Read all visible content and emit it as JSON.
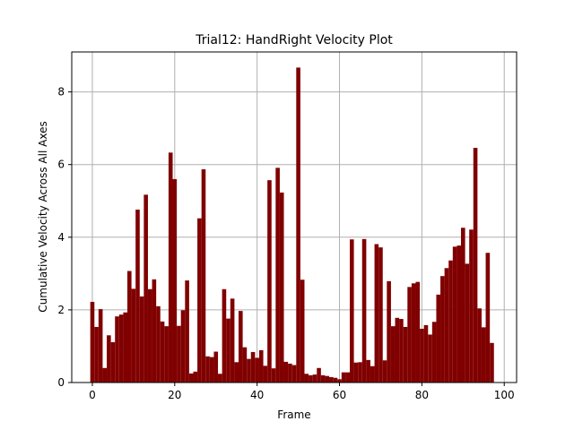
{
  "chart_data": {
    "type": "bar",
    "title": "Trial12: HandRight Velocity Plot",
    "xlabel": "Frame",
    "ylabel": "Cumulative Velocity Across All Axes",
    "xlim": [
      -5,
      103
    ],
    "ylim": [
      0,
      9.1
    ],
    "xticks": [
      0,
      20,
      40,
      60,
      80,
      100
    ],
    "yticks": [
      0,
      2,
      4,
      6,
      8
    ],
    "grid": true,
    "bar_color": "#800000",
    "x": [
      0,
      1,
      2,
      3,
      4,
      5,
      6,
      7,
      8,
      9,
      10,
      11,
      12,
      13,
      14,
      15,
      16,
      17,
      18,
      19,
      20,
      21,
      22,
      23,
      24,
      25,
      26,
      27,
      28,
      29,
      30,
      31,
      32,
      33,
      34,
      35,
      36,
      37,
      38,
      39,
      40,
      41,
      42,
      43,
      44,
      45,
      46,
      47,
      48,
      49,
      50,
      51,
      52,
      53,
      54,
      55,
      56,
      57,
      58,
      59,
      60,
      61,
      62,
      63,
      64,
      65,
      66,
      67,
      68,
      69,
      70,
      71,
      72,
      73,
      74,
      75,
      76,
      77,
      78,
      79,
      80,
      81,
      82,
      83,
      84,
      85,
      86,
      87,
      88,
      89,
      90,
      91,
      92,
      93,
      94,
      95,
      96,
      97
    ],
    "values": [
      2.22,
      1.53,
      2.02,
      0.4,
      1.3,
      1.11,
      1.82,
      1.87,
      1.93,
      3.07,
      2.58,
      4.76,
      2.37,
      5.17,
      2.57,
      2.84,
      2.1,
      1.68,
      1.55,
      6.33,
      5.6,
      1.56,
      1.99,
      2.81,
      0.25,
      0.3,
      4.52,
      5.87,
      0.72,
      0.7,
      0.85,
      0.24,
      2.57,
      1.76,
      2.31,
      0.56,
      1.97,
      0.97,
      0.65,
      0.84,
      0.68,
      0.89,
      0.46,
      5.57,
      0.39,
      5.91,
      5.23,
      0.57,
      0.52,
      0.48,
      8.67,
      2.83,
      0.24,
      0.2,
      0.22,
      0.4,
      0.2,
      0.18,
      0.15,
      0.13,
      0.09,
      0.28,
      0.28,
      3.94,
      0.55,
      0.56,
      3.95,
      0.62,
      0.45,
      3.81,
      3.72,
      0.61,
      2.79,
      1.55,
      1.78,
      1.75,
      1.53,
      2.63,
      2.73,
      2.77,
      1.48,
      1.58,
      1.32,
      1.67,
      2.42,
      2.93,
      3.15,
      3.36,
      3.74,
      3.77,
      4.26,
      3.27,
      4.21,
      6.46,
      2.04,
      1.52,
      3.57,
      1.09
    ]
  }
}
